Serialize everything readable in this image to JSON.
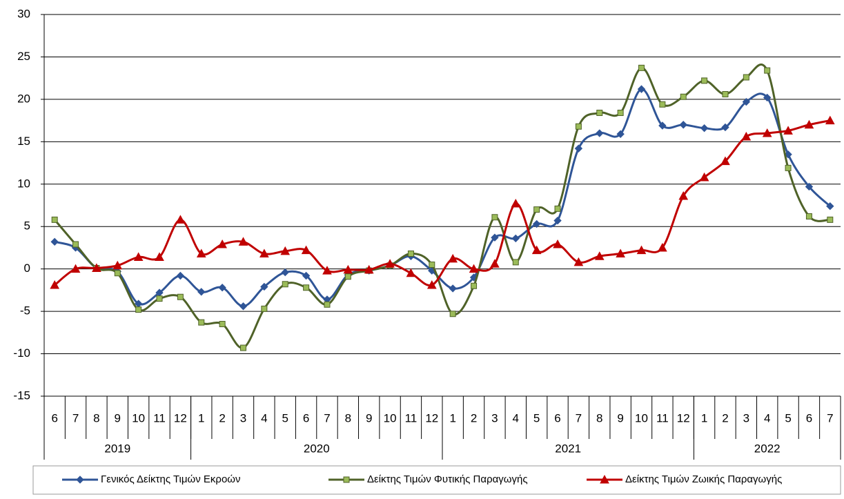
{
  "chart_data": {
    "type": "line",
    "categories": [
      "6",
      "7",
      "8",
      "9",
      "10",
      "11",
      "12",
      "1",
      "2",
      "3",
      "4",
      "5",
      "6",
      "7",
      "8",
      "9",
      "10",
      "11",
      "12",
      "1",
      "2",
      "3",
      "4",
      "5",
      "6",
      "7",
      "8",
      "9",
      "10",
      "11",
      "12",
      "1",
      "2",
      "3",
      "4",
      "5",
      "6",
      "7"
    ],
    "category_groups": [
      {
        "label": "2019",
        "count": 7
      },
      {
        "label": "2020",
        "count": 12
      },
      {
        "label": "2021",
        "count": 12
      },
      {
        "label": "2022",
        "count": 7
      }
    ],
    "series": [
      {
        "name": "Γενικός Δείκτης Τιμών Εκροών",
        "color": "#2f5597",
        "marker": "diamond",
        "values": [
          3.2,
          2.5,
          0.1,
          -0.3,
          -4.1,
          -2.8,
          -0.8,
          -2.7,
          -2.2,
          -4.4,
          -2.1,
          -0.4,
          -0.8,
          -3.6,
          -0.7,
          -0.2,
          0.4,
          1.5,
          -0.2,
          -2.3,
          -1.0,
          3.7,
          3.6,
          5.3,
          5.7,
          14.2,
          16.0,
          15.9,
          21.2,
          16.9,
          17.0,
          16.6,
          16.7,
          19.7,
          20.2,
          13.5,
          9.7,
          7.4
        ]
      },
      {
        "name": "Δείκτης Τιμών Φυτικής Παραγωγής",
        "color": "#4f6228",
        "marker": "square",
        "values": [
          5.8,
          2.9,
          0.1,
          -0.5,
          -4.8,
          -3.5,
          -3.3,
          -6.3,
          -6.5,
          -9.3,
          -4.7,
          -1.8,
          -2.2,
          -4.2,
          -0.9,
          -0.2,
          0.4,
          1.8,
          0.5,
          -5.3,
          -2.0,
          6.1,
          0.8,
          7.0,
          7.1,
          16.8,
          18.4,
          18.4,
          23.7,
          19.4,
          20.3,
          22.2,
          20.6,
          22.6,
          23.4,
          11.9,
          6.2,
          5.8
        ]
      },
      {
        "name": "Δείκτης Τιμών Ζωικής Παραγωγής",
        "color": "#c00000",
        "marker": "triangle",
        "values": [
          -1.9,
          0.0,
          0.1,
          0.4,
          1.4,
          1.4,
          5.8,
          1.8,
          2.9,
          3.2,
          1.8,
          2.1,
          2.2,
          -0.2,
          -0.1,
          -0.1,
          0.6,
          -0.5,
          -1.9,
          1.2,
          0.0,
          0.6,
          7.7,
          2.2,
          2.9,
          0.8,
          1.5,
          1.8,
          2.2,
          2.5,
          8.6,
          10.8,
          12.7,
          15.6,
          16.0,
          16.3,
          17.0,
          17.5
        ]
      }
    ],
    "ylim": [
      -15,
      30
    ],
    "yticks": [
      -15,
      -10,
      -5,
      0,
      5,
      10,
      15,
      20,
      25,
      30
    ],
    "grid": true
  }
}
